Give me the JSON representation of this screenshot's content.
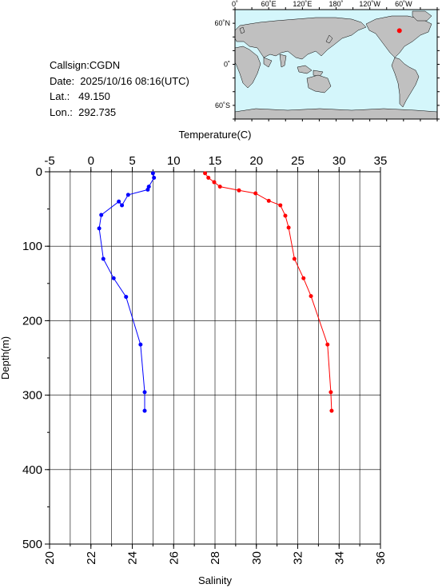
{
  "info": {
    "callsign": "Callsign:CGDN",
    "date": "Date:  2025/10/16 08:16(UTC)",
    "lat": "Lat.:   49.150",
    "lon": "Lon.:  292.735"
  },
  "map": {
    "ocean_color": "#d4f6fb",
    "land_color": "#c0c0c0",
    "marker_color": "#ff0000",
    "lon_labels": [
      "0˚",
      "60˚E",
      "120˚E",
      "180˚",
      "120˚W",
      "60˚W"
    ],
    "lat_labels": [
      "60˚N",
      "0˚",
      "60˚S"
    ],
    "marker": {
      "lat": 49.15,
      "lon": 292.735
    }
  },
  "chart_data": {
    "type": "line",
    "title": "",
    "x_top": {
      "label": "Temperature(C)",
      "range": [
        -5,
        35
      ],
      "ticks": [
        "-5",
        "0",
        "5",
        "10",
        "15",
        "20",
        "25",
        "30",
        "35"
      ]
    },
    "x_bottom": {
      "label": "Salinity",
      "range": [
        20,
        36
      ],
      "ticks": [
        "20",
        "22",
        "24",
        "26",
        "28",
        "30",
        "32",
        "34",
        "36"
      ]
    },
    "y": {
      "label": "Depth(m)",
      "range": [
        0,
        500
      ],
      "ticks": [
        "0",
        "100",
        "200",
        "300",
        "400",
        "500"
      ],
      "inverted": true
    },
    "grid": true,
    "series": [
      {
        "axis": "temperature",
        "color": "#ff0000",
        "points": [
          [
            13.8,
            2
          ],
          [
            14.2,
            8
          ],
          [
            14.9,
            14
          ],
          [
            15.6,
            20
          ],
          [
            17.9,
            25
          ],
          [
            19.9,
            29
          ],
          [
            21.5,
            39
          ],
          [
            22.9,
            45
          ],
          [
            23.5,
            59
          ],
          [
            23.9,
            75
          ],
          [
            24.6,
            117
          ],
          [
            25.7,
            143
          ],
          [
            26.6,
            167
          ],
          [
            28.6,
            232
          ],
          [
            29.0,
            296
          ],
          [
            29.1,
            321
          ]
        ]
      },
      {
        "axis": "salinity",
        "color": "#0000ff",
        "points": [
          [
            25.0,
            2
          ],
          [
            25.05,
            8
          ],
          [
            24.8,
            20
          ],
          [
            24.75,
            24
          ],
          [
            23.8,
            31
          ],
          [
            23.5,
            45
          ],
          [
            23.35,
            40
          ],
          [
            22.5,
            58
          ],
          [
            22.4,
            76
          ],
          [
            22.6,
            117
          ],
          [
            23.1,
            143
          ],
          [
            23.7,
            168
          ],
          [
            24.4,
            232
          ],
          [
            24.6,
            296
          ],
          [
            24.6,
            321
          ]
        ]
      }
    ]
  }
}
